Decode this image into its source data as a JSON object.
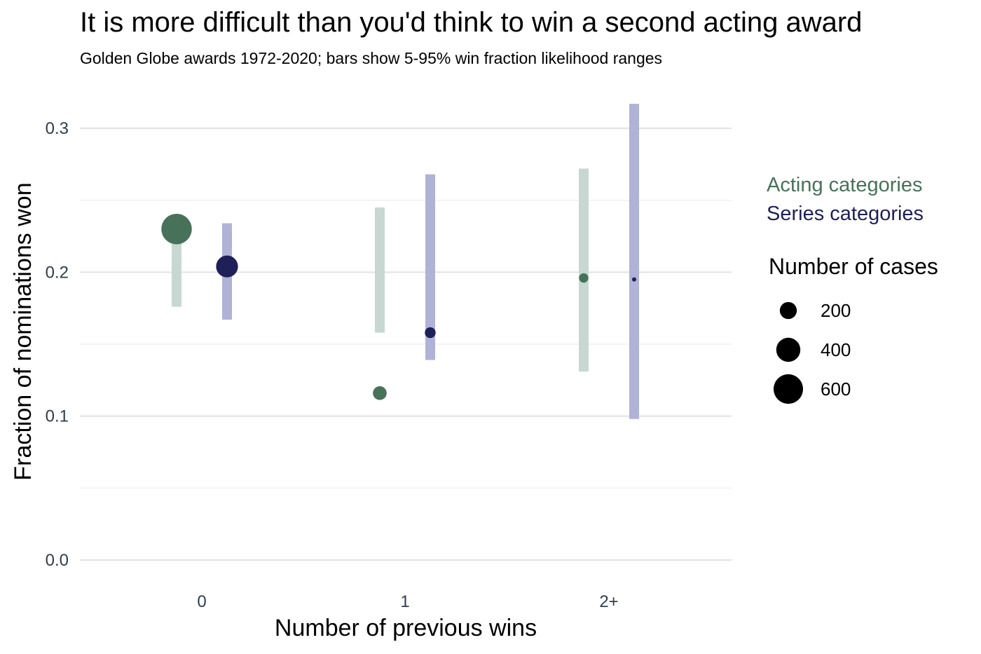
{
  "chart_data": {
    "type": "scatter",
    "title": "It is more difficult than you'd think to win a second acting award",
    "subtitle": "Golden Globe awards 1972-2020; bars show 5-95% win fraction likelihood ranges",
    "xlabel": "Number of previous wins",
    "ylabel": "Fraction of nominations won",
    "categories": [
      "0",
      "1",
      "2+"
    ],
    "y_ticks": [
      "0.0",
      "0.1",
      "0.2",
      "0.3"
    ],
    "ylim": [
      0,
      0.32
    ],
    "grid": true,
    "legend_position": "right",
    "series": [
      {
        "name": "Acting categories",
        "color": "#477259",
        "bar_color": "#c6d8d1",
        "points": [
          {
            "x": "0",
            "y": 0.23,
            "low": 0.176,
            "high": 0.234,
            "cases": 640
          },
          {
            "x": "1",
            "y": 0.116,
            "low": 0.158,
            "high": 0.245,
            "cases": 130
          },
          {
            "x": "2+",
            "y": 0.196,
            "low": 0.131,
            "high": 0.272,
            "cases": 60
          }
        ]
      },
      {
        "name": "Series categories",
        "color": "#1f2057",
        "bar_color": "#b0b2d6",
        "points": [
          {
            "x": "0",
            "y": 0.204,
            "low": 0.167,
            "high": 0.234,
            "cases": 330
          },
          {
            "x": "1",
            "y": 0.158,
            "low": 0.139,
            "high": 0.268,
            "cases": 80
          },
          {
            "x": "2+",
            "y": 0.195,
            "low": 0.098,
            "high": 0.317,
            "cases": 12
          }
        ]
      }
    ],
    "size_legend": {
      "title": "Number of cases",
      "values": [
        200,
        400,
        600
      ],
      "labels": [
        "200",
        "400",
        "600"
      ]
    }
  }
}
